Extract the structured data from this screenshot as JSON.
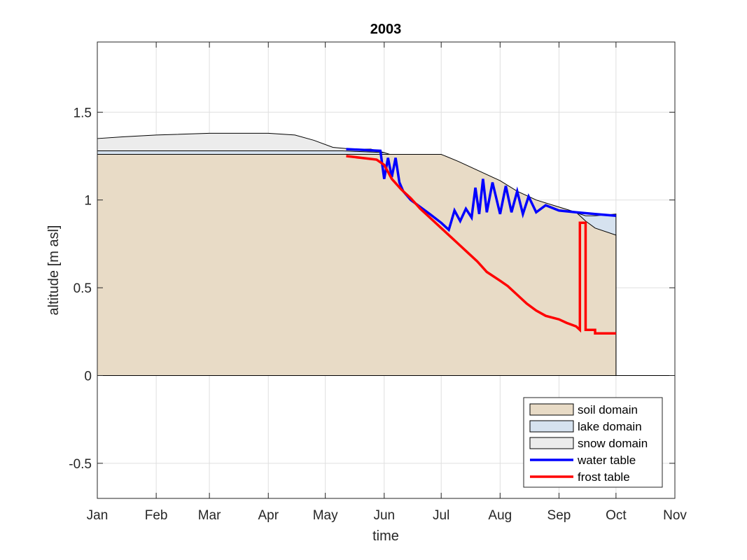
{
  "chart_data": {
    "type": "area",
    "title": "2003",
    "xlabel": "time",
    "ylabel": "altitude [m asl]",
    "x_ticks": [
      "Jan",
      "Feb",
      "Mar",
      "Apr",
      "May",
      "Jun",
      "Jul",
      "Aug",
      "Sep",
      "Oct",
      "Nov"
    ],
    "y_ticks": [
      "-0.5",
      "0",
      "0.5",
      "1",
      "1.5"
    ],
    "y_tick_values": [
      -0.5,
      0,
      0.5,
      1,
      1.5
    ],
    "xlim": [
      "2003-01-01",
      "2003-11-01"
    ],
    "ylim": [
      -0.7,
      1.9
    ],
    "grid": true,
    "legend_position": "bottom-right",
    "series": [
      {
        "name": "soil domain",
        "kind": "area",
        "color": "#e8dbc6",
        "x": [
          "2003-01-01",
          "2003-05-10",
          "2003-06-01",
          "2003-07-01",
          "2003-07-10",
          "2003-07-20",
          "2003-08-01",
          "2003-08-10",
          "2003-08-20",
          "2003-09-01",
          "2003-09-10",
          "2003-09-15",
          "2003-09-20",
          "2003-10-01"
        ],
        "y": [
          1.26,
          1.26,
          1.26,
          1.26,
          1.22,
          1.17,
          1.11,
          1.05,
          1.0,
          0.96,
          0.93,
          0.88,
          0.84,
          0.8
        ]
      },
      {
        "name": "lake domain",
        "kind": "area",
        "color": "#d6e2ef",
        "x": [
          "2003-01-01",
          "2003-05-10",
          "2003-06-01",
          "2003-09-15",
          "2003-09-20",
          "2003-10-01"
        ],
        "y": [
          1.28,
          1.28,
          1.27,
          0.91,
          0.91,
          0.92
        ]
      },
      {
        "name": "snow domain",
        "kind": "area",
        "color": "#ececec",
        "x": [
          "2003-01-01",
          "2003-01-15",
          "2003-02-01",
          "2003-03-01",
          "2003-04-01",
          "2003-04-15",
          "2003-04-25",
          "2003-05-05",
          "2003-05-15",
          "2003-05-25",
          "2003-06-01"
        ],
        "y": [
          1.35,
          1.36,
          1.37,
          1.38,
          1.38,
          1.37,
          1.34,
          1.3,
          1.29,
          1.29,
          1.27
        ]
      },
      {
        "name": "water table",
        "kind": "line",
        "color": "#0000ff",
        "x": [
          "2003-05-12",
          "2003-05-30",
          "2003-06-01",
          "2003-06-03",
          "2003-06-05",
          "2003-06-07",
          "2003-06-09",
          "2003-06-11",
          "2003-06-15",
          "2003-06-20",
          "2003-06-25",
          "2003-07-01",
          "2003-07-05",
          "2003-07-08",
          "2003-07-11",
          "2003-07-14",
          "2003-07-17",
          "2003-07-19",
          "2003-07-21",
          "2003-07-23",
          "2003-07-25",
          "2003-07-28",
          "2003-08-01",
          "2003-08-04",
          "2003-08-07",
          "2003-08-10",
          "2003-08-13",
          "2003-08-16",
          "2003-08-20",
          "2003-08-25",
          "2003-09-01",
          "2003-09-10",
          "2003-09-20",
          "2003-10-01"
        ],
        "y": [
          1.29,
          1.28,
          1.12,
          1.24,
          1.13,
          1.24,
          1.1,
          1.05,
          1.0,
          0.96,
          0.92,
          0.87,
          0.83,
          0.94,
          0.88,
          0.95,
          0.9,
          1.07,
          0.92,
          1.12,
          0.93,
          1.1,
          0.92,
          1.08,
          0.93,
          1.05,
          0.92,
          1.02,
          0.93,
          0.97,
          0.94,
          0.93,
          0.92,
          0.91
        ]
      },
      {
        "name": "frost table",
        "kind": "line",
        "color": "#ff0000",
        "x": [
          "2003-05-12",
          "2003-05-20",
          "2003-05-28",
          "2003-06-01",
          "2003-06-05",
          "2003-06-10",
          "2003-06-15",
          "2003-06-20",
          "2003-06-25",
          "2003-07-01",
          "2003-07-05",
          "2003-07-10",
          "2003-07-15",
          "2003-07-20",
          "2003-07-25",
          "2003-08-01",
          "2003-08-05",
          "2003-08-10",
          "2003-08-15",
          "2003-08-20",
          "2003-08-25",
          "2003-09-01",
          "2003-09-05",
          "2003-09-10",
          "2003-09-12",
          "2003-09-12",
          "2003-09-15",
          "2003-09-15",
          "2003-09-20",
          "2003-09-20",
          "2003-10-01"
        ],
        "y": [
          1.25,
          1.24,
          1.23,
          1.2,
          1.12,
          1.06,
          1.01,
          0.95,
          0.9,
          0.84,
          0.8,
          0.75,
          0.7,
          0.65,
          0.59,
          0.54,
          0.51,
          0.46,
          0.41,
          0.37,
          0.34,
          0.32,
          0.3,
          0.28,
          0.26,
          0.87,
          0.87,
          0.26,
          0.26,
          0.24,
          0.24
        ]
      }
    ]
  }
}
